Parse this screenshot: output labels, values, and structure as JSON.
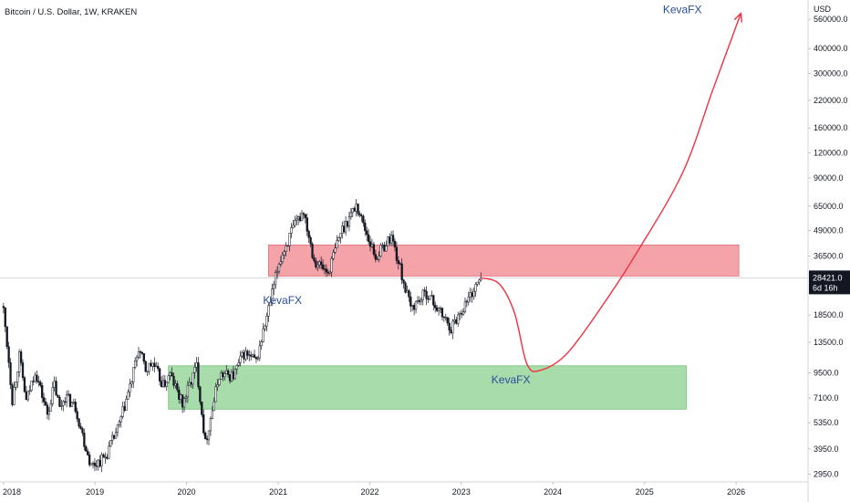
{
  "header": {
    "title": "Bitcoin / U.S. Dollar, 1W, KRAKEN"
  },
  "colors": {
    "candle": "#131722",
    "resistance_zone": "#f4a3a9",
    "support_zone": "#a9dcab",
    "projection": "#f2303e",
    "annotation_text": "#2a4d9b",
    "price_label_bg": "#131722"
  },
  "chart_data": {
    "type": "candlestick",
    "title": "Bitcoin / U.S. Dollar, 1W, KRAKEN",
    "y_scale": "log",
    "currency_label": "USD",
    "y_ticks": [
      "560000.0",
      "400000.0",
      "300000.0",
      "220000.0",
      "160000.0",
      "120000.0",
      "90000.0",
      "65000.0",
      "49000.0",
      "36500.0",
      "18500.0",
      "13500.0",
      "9500.0",
      "7100.0",
      "5350.0",
      "3950.0",
      "2950.0"
    ],
    "x_ticks": [
      "2018",
      "2019",
      "2020",
      "2021",
      "2022",
      "2023",
      "2024",
      "2025",
      "2026"
    ],
    "ylim": [
      2700,
      700000
    ],
    "xlim": [
      "2017-12-18",
      "2026-10-15"
    ],
    "last_price": {
      "value": 28421.0,
      "label": "28421.0",
      "countdown": "6d 16h"
    },
    "price_path": [
      [
        "2018-01-01",
        19500
      ],
      [
        "2018-01-22",
        11000
      ],
      [
        "2018-02-05",
        7000
      ],
      [
        "2018-03-05",
        11500
      ],
      [
        "2018-04-02",
        6800
      ],
      [
        "2018-05-07",
        9800
      ],
      [
        "2018-06-25",
        5900
      ],
      [
        "2018-07-23",
        8300
      ],
      [
        "2018-08-13",
        6300
      ],
      [
        "2018-09-03",
        7300
      ],
      [
        "2018-10-15",
        6400
      ],
      [
        "2018-11-19",
        4300
      ],
      [
        "2018-12-17",
        3250
      ],
      [
        "2019-02-11",
        3600
      ],
      [
        "2019-04-08",
        5200
      ],
      [
        "2019-05-27",
        8700
      ],
      [
        "2019-06-24",
        12600
      ],
      [
        "2019-07-22",
        9800
      ],
      [
        "2019-08-19",
        10600
      ],
      [
        "2019-09-30",
        8200
      ],
      [
        "2019-10-28",
        9300
      ],
      [
        "2019-12-16",
        6600
      ],
      [
        "2020-02-10",
        10300
      ],
      [
        "2020-03-16",
        4200
      ],
      [
        "2020-05-11",
        9300
      ],
      [
        "2020-07-06",
        9200
      ],
      [
        "2020-08-17",
        11900
      ],
      [
        "2020-10-05",
        10800
      ],
      [
        "2020-11-16",
        18000
      ],
      [
        "2021-01-04",
        34000
      ],
      [
        "2021-02-22",
        48000
      ],
      [
        "2021-04-12",
        62000
      ],
      [
        "2021-05-24",
        35000
      ],
      [
        "2021-07-19",
        30000
      ],
      [
        "2021-09-06",
        48000
      ],
      [
        "2021-11-08",
        66000
      ],
      [
        "2022-01-24",
        36000
      ],
      [
        "2022-03-28",
        46000
      ],
      [
        "2022-06-13",
        20000
      ],
      [
        "2022-08-15",
        24000
      ],
      [
        "2022-10-03",
        19500
      ],
      [
        "2022-11-21",
        16000
      ],
      [
        "2023-01-16",
        21000
      ],
      [
        "2023-03-20",
        28421
      ]
    ],
    "zones": [
      {
        "name": "resistance",
        "from": "2020-11-23",
        "to": "2026-01-12",
        "low": 29000,
        "high": 41500
      },
      {
        "name": "support",
        "from": "2019-10-21",
        "to": "2025-06-16",
        "low": 6250,
        "high": 10300
      }
    ],
    "projection_path": [
      [
        "2023-03-20",
        28421
      ],
      [
        "2023-06-01",
        26500
      ],
      [
        "2023-08-01",
        19000
      ],
      [
        "2023-09-20",
        10500
      ],
      [
        "2023-11-15",
        9800
      ],
      [
        "2024-03-01",
        12000
      ],
      [
        "2024-08-01",
        22000
      ],
      [
        "2024-12-01",
        38000
      ],
      [
        "2025-06-01",
        95000
      ],
      [
        "2025-10-01",
        250000
      ],
      [
        "2026-01-20",
        600000
      ]
    ],
    "annotations": [
      {
        "text": "KevaFX",
        "date": "2020-11-01",
        "price": 21000
      },
      {
        "text": "KevaFX",
        "date": "2023-05-01",
        "price": 8400
      },
      {
        "text": "KevaFX",
        "date": "2025-03-15",
        "price": 600000
      }
    ]
  }
}
